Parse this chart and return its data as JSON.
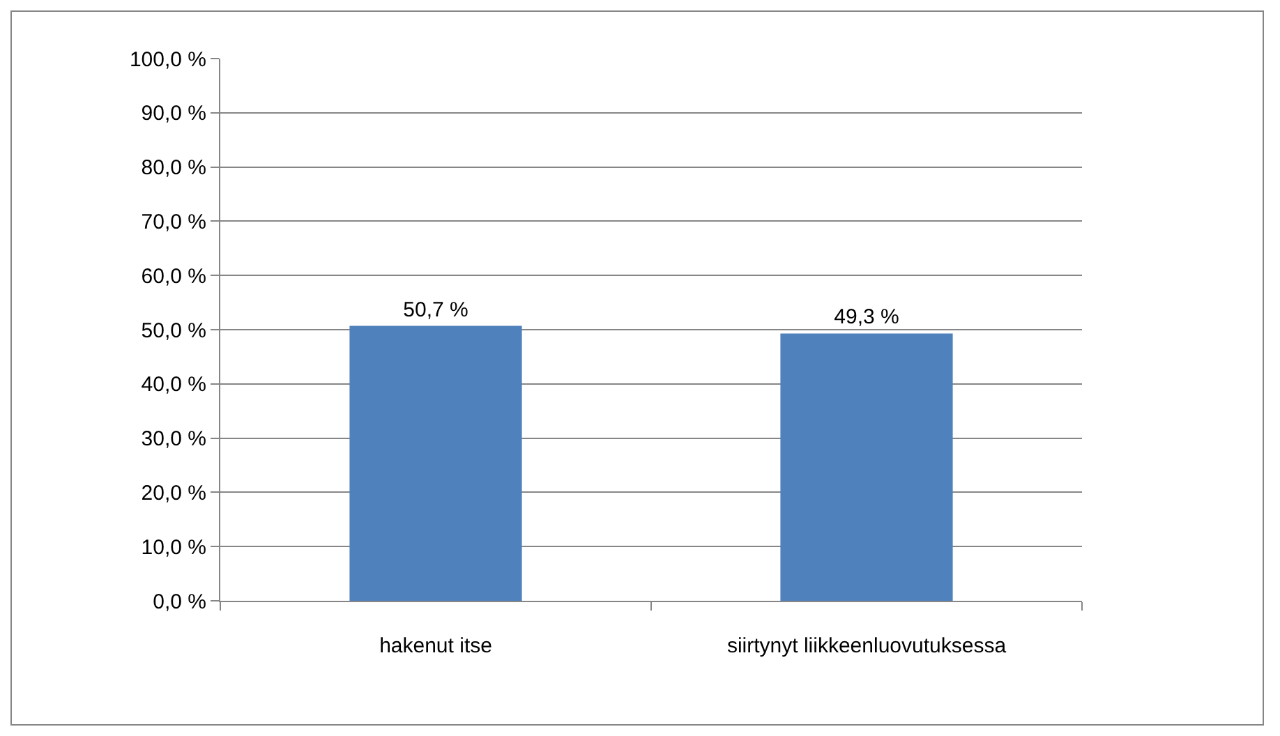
{
  "chart_data": {
    "type": "bar",
    "categories": [
      "hakenut itse",
      "siirtynyt liikkeenluovutuksessa"
    ],
    "values": [
      50.7,
      49.3
    ],
    "value_labels": [
      "50,7 %",
      "49,3 %"
    ],
    "color": "#4f81bd",
    "ylim": [
      0,
      100
    ],
    "yticks": [
      {
        "value": 0,
        "label": "0,0 %"
      },
      {
        "value": 10,
        "label": "10,0 %"
      },
      {
        "value": 20,
        "label": "20,0 %"
      },
      {
        "value": 30,
        "label": "30,0 %"
      },
      {
        "value": 40,
        "label": "40,0 %"
      },
      {
        "value": 50,
        "label": "50,0 %"
      },
      {
        "value": 60,
        "label": "60,0 %"
      },
      {
        "value": 70,
        "label": "70,0 %"
      },
      {
        "value": 80,
        "label": "80,0 %"
      },
      {
        "value": 90,
        "label": "90,0 %"
      },
      {
        "value": 100,
        "label": "100,0 %"
      }
    ],
    "grid": "y"
  }
}
